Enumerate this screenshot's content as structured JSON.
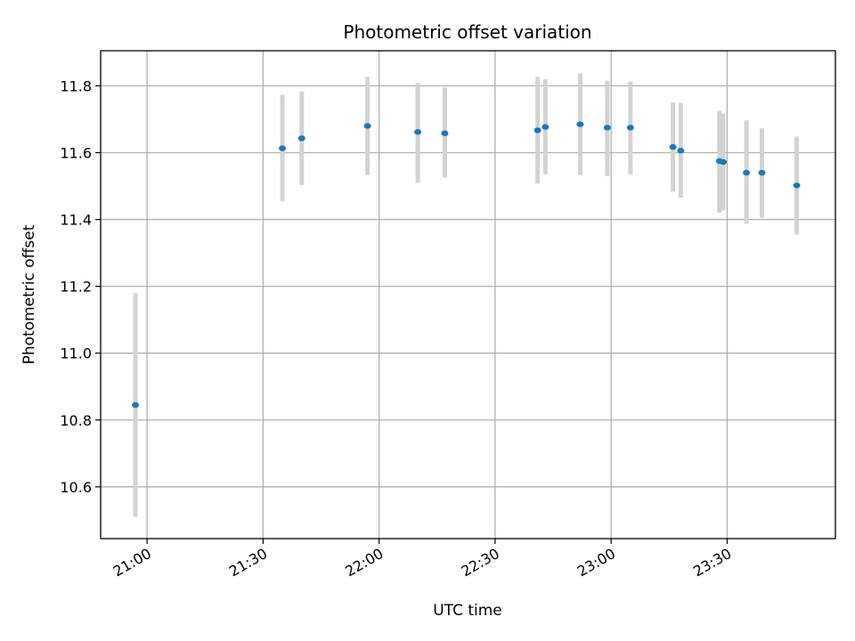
{
  "chart_data": {
    "type": "scatter",
    "title": "Photometric offset variation",
    "xlabel": "UTC time",
    "ylabel": "Photometric offset",
    "x_unit": "UTC HH:MM",
    "xlim": [
      "20:48",
      "23:58"
    ],
    "ylim": [
      10.445,
      11.905
    ],
    "xticks": [
      "21:00",
      "21:30",
      "22:00",
      "22:30",
      "23:00",
      "23:30"
    ],
    "yticks": [
      "10.6",
      "10.8",
      "11.0",
      "11.2",
      "11.4",
      "11.6",
      "11.8"
    ],
    "grid": true,
    "legend": "none",
    "marker_color": "#1f77b4",
    "errorbar_color": "#d3d3d3",
    "points": [
      {
        "x": "20:57",
        "y": 10.845,
        "ylow": 10.51,
        "yhigh": 11.18
      },
      {
        "x": "21:35",
        "y": 11.613,
        "ylow": 11.455,
        "yhigh": 11.773
      },
      {
        "x": "21:40",
        "y": 11.643,
        "ylow": 11.503,
        "yhigh": 11.783
      },
      {
        "x": "21:57",
        "y": 11.68,
        "ylow": 11.533,
        "yhigh": 11.827
      },
      {
        "x": "22:10",
        "y": 11.662,
        "ylow": 11.51,
        "yhigh": 11.808
      },
      {
        "x": "22:17",
        "y": 11.658,
        "ylow": 11.525,
        "yhigh": 11.795
      },
      {
        "x": "22:41",
        "y": 11.667,
        "ylow": 11.507,
        "yhigh": 11.827
      },
      {
        "x": "22:43",
        "y": 11.677,
        "ylow": 11.535,
        "yhigh": 11.82
      },
      {
        "x": "22:52",
        "y": 11.685,
        "ylow": 11.533,
        "yhigh": 11.837
      },
      {
        "x": "22:59",
        "y": 11.675,
        "ylow": 11.53,
        "yhigh": 11.815
      },
      {
        "x": "23:05",
        "y": 11.675,
        "ylow": 11.535,
        "yhigh": 11.813
      },
      {
        "x": "23:16",
        "y": 11.617,
        "ylow": 11.483,
        "yhigh": 11.75
      },
      {
        "x": "23:18",
        "y": 11.606,
        "ylow": 11.465,
        "yhigh": 11.748
      },
      {
        "x": "23:28",
        "y": 11.575,
        "ylow": 11.42,
        "yhigh": 11.725
      },
      {
        "x": "23:29",
        "y": 11.572,
        "ylow": 11.427,
        "yhigh": 11.717
      },
      {
        "x": "23:35",
        "y": 11.54,
        "ylow": 11.387,
        "yhigh": 11.697
      },
      {
        "x": "23:39",
        "y": 11.54,
        "ylow": 11.405,
        "yhigh": 11.673
      },
      {
        "x": "23:48",
        "y": 11.502,
        "ylow": 11.355,
        "yhigh": 11.648
      }
    ]
  }
}
